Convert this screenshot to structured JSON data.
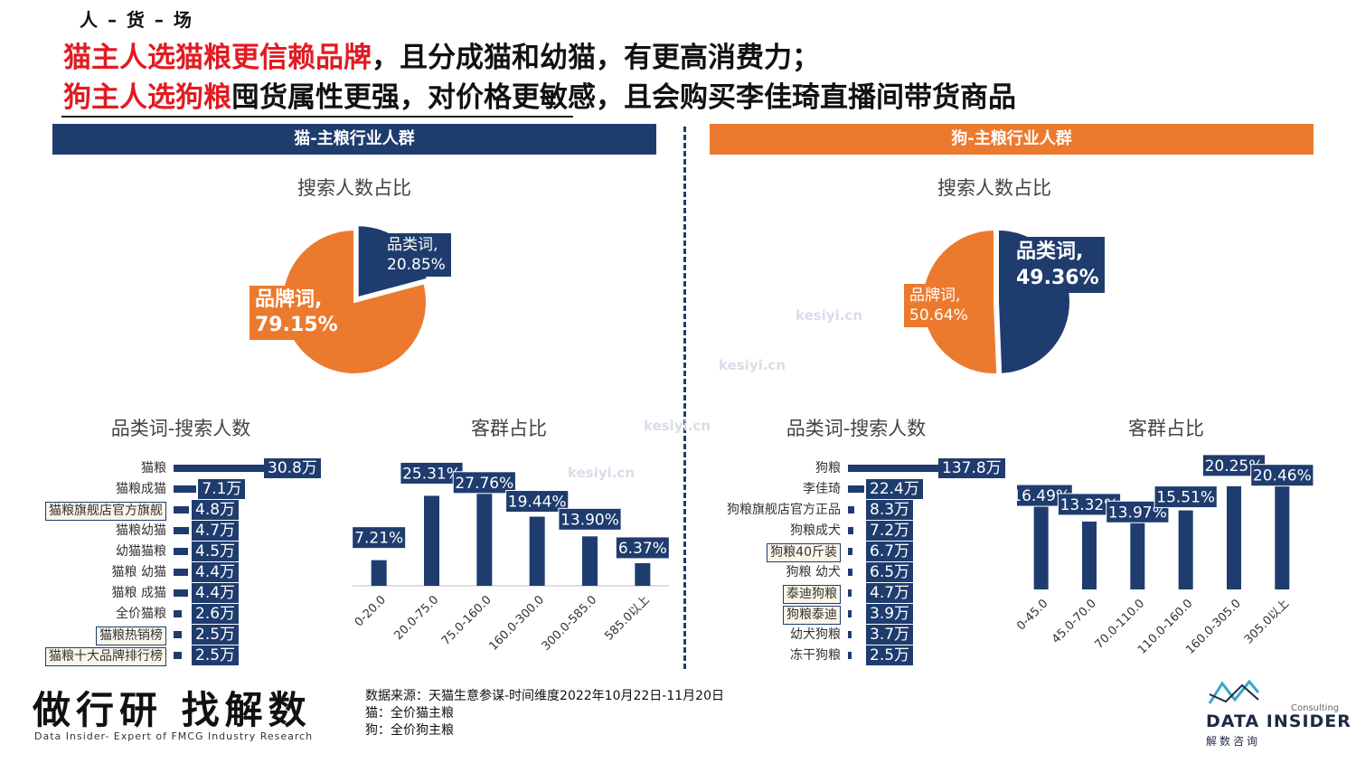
{
  "breadcrumb": "人 – 货 – 场",
  "headline": {
    "line1_red": "猫主人选猫粮更信赖品牌",
    "line1_rest": "，且分成猫和幼猫，有更高消费力；",
    "line2_red": "狗主人选狗粮",
    "line2_rest": "囤货属性更强，对价格更敏感，且会购买李佳琦直播间带货商品"
  },
  "banners": {
    "cat": "猫-主粮行业人群",
    "dog": "狗-主粮行业人群"
  },
  "watermark": [
    "kesiyi.cn",
    "kesiyi.cn",
    "kesiyi.cn",
    "kesiyi.cn"
  ],
  "colors": {
    "navy": "#1f3c6e",
    "orange": "#ec7a2e",
    "red": "#e11b22"
  },
  "footer": {
    "source": "数据来源：天猫生意参谋-时间维度2022年10月22日-11月20日",
    "cat_note": "猫：全价猫主粮",
    "dog_note": "狗：全价狗主粮"
  },
  "brand": {
    "cn": "做行研 找解数",
    "en": "Data Insider- Expert of FMCG Industry Research"
  },
  "logo": {
    "name": "DATA INSIDER",
    "small": "Consulting",
    "cn": "解数咨询"
  },
  "chart_data": [
    {
      "id": "cat_pie",
      "type": "pie",
      "title": "搜索人数占比",
      "slices": [
        {
          "label": "品类词,",
          "pct": "20.85%",
          "value": 20.85,
          "color": "#1f3c6e"
        },
        {
          "label": "品牌词,",
          "pct": "79.15%",
          "value": 79.15,
          "color": "#ec7a2e"
        }
      ]
    },
    {
      "id": "cat_hbar",
      "type": "bar",
      "orientation": "horizontal",
      "title": "品类词-搜索人数",
      "categories": [
        "猫粮",
        "猫粮成猫",
        "猫粮旗舰店官方旗舰",
        "猫粮幼猫",
        "幼猫猫粮",
        "猫粮 幼猫",
        "猫粮 成猫",
        "全价猫粮",
        "猫粮热销榜",
        "猫粮十大品牌排行榜"
      ],
      "values": [
        30.8,
        7.1,
        4.8,
        4.7,
        4.5,
        4.4,
        4.4,
        2.6,
        2.5,
        2.5
      ],
      "labels": [
        "30.8万",
        "7.1万",
        "4.8万",
        "4.7万",
        "4.5万",
        "4.4万",
        "4.4万",
        "2.6万",
        "2.5万",
        "2.5万"
      ],
      "highlighted": [
        2,
        8,
        9
      ],
      "max": 30.8
    },
    {
      "id": "cat_col",
      "type": "bar",
      "title": "客群占比",
      "categories": [
        "0-20.0",
        "20.0-75.0",
        "75.0-160.0",
        "160.0-300.0",
        "300.0-585.0",
        "585.0以上"
      ],
      "values": [
        7.21,
        25.31,
        27.76,
        19.44,
        13.9,
        6.37
      ],
      "labels": [
        "7.21%",
        "25.31%",
        "27.76%",
        "19.44%",
        "13.90%",
        "6.37%"
      ],
      "ylim": [
        0,
        30
      ]
    },
    {
      "id": "dog_pie",
      "type": "pie",
      "title": "搜索人数占比",
      "slices": [
        {
          "label": "品类词,",
          "pct": "49.36%",
          "value": 49.36,
          "color": "#1f3c6e"
        },
        {
          "label": "品牌词,",
          "pct": "50.64%",
          "value": 50.64,
          "color": "#ec7a2e"
        }
      ]
    },
    {
      "id": "dog_hbar",
      "type": "bar",
      "orientation": "horizontal",
      "title": "品类词-搜索人数",
      "categories": [
        "狗粮",
        "李佳琦",
        "狗粮旗舰店官方正品",
        "狗粮成犬",
        "狗粮40斤装",
        "狗粮 幼犬",
        "泰迪狗粮",
        "狗粮泰迪",
        "幼犬狗粮",
        "冻干狗粮"
      ],
      "values": [
        137.8,
        22.4,
        8.3,
        7.2,
        6.7,
        6.5,
        4.7,
        3.9,
        3.7,
        2.5
      ],
      "labels": [
        "137.8万",
        "22.4万",
        "8.3万",
        "7.2万",
        "6.7万",
        "6.5万",
        "4.7万",
        "3.9万",
        "3.7万",
        "2.5万"
      ],
      "highlighted": [
        4,
        6,
        7
      ],
      "max": 137.8
    },
    {
      "id": "dog_col",
      "type": "bar",
      "title": "客群占比",
      "categories": [
        "0-45.0",
        "45.0-70.0",
        "70.0-110.0",
        "110.0-160.0",
        "160.0-305.0",
        "305.0以上"
      ],
      "values": [
        16.49,
        13.32,
        13.97,
        15.51,
        20.25,
        20.46
      ],
      "labels": [
        "16.49%",
        "13.32%",
        "13.97%",
        "15.51%",
        "20.25%",
        "20.46%"
      ],
      "ylim": [
        0,
        22
      ]
    }
  ]
}
